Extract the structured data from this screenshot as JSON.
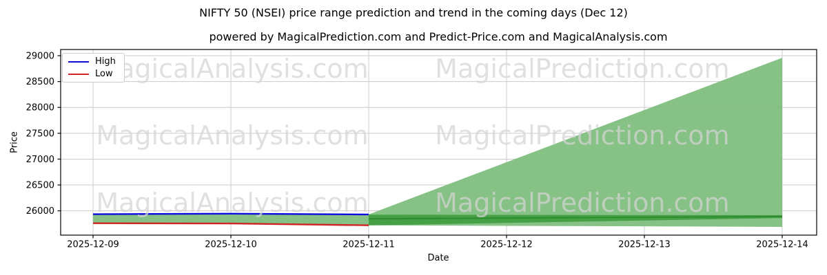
{
  "figure": {
    "title": "NIFTY 50 (NSEI) price range prediction and trend in the coming days (Dec 12)",
    "subtitle": "powered by MagicalPrediction.com and Predict-Price.com and MagicalAnalysis.com"
  },
  "chart_data": {
    "type": "line",
    "title": "NIFTY 50 (NSEI) price range prediction and trend in the coming days (Dec 12)",
    "subtitle": "powered by MagicalPrediction.com and Predict-Price.com and MagicalAnalysis.com",
    "xlabel": "Date",
    "ylabel": "Price",
    "x_categories": [
      "2025-12-09",
      "2025-12-10",
      "2025-12-11",
      "2025-12-12",
      "2025-12-13",
      "2025-12-14"
    ],
    "y_ticks": [
      26000,
      26500,
      27000,
      27500,
      28000,
      28500,
      29000
    ],
    "xlim": [
      -0.235,
      5.25
    ],
    "ylim": [
      25530,
      29120
    ],
    "grid": true,
    "grid_color": "#cccccc",
    "axis_color": "#000000",
    "watermark_color": "#d4d4d4",
    "legend": {
      "position": "upper-left",
      "entries": [
        {
          "label": "High",
          "color": "#0b0bdf"
        },
        {
          "label": "Low",
          "color": "#cf2424"
        }
      ]
    },
    "series": [
      {
        "name": "High",
        "color": "#0b0bdf",
        "width": 2.4,
        "x": [
          0,
          1,
          2
        ],
        "y": [
          25935,
          25945,
          25930
        ]
      },
      {
        "name": "Low",
        "color": "#cf2424",
        "width": 2.4,
        "x": [
          0,
          1,
          2
        ],
        "y": [
          25760,
          25755,
          25720
        ]
      },
      {
        "name": "Prediction mid",
        "color": "#2e8c2e",
        "width": 2,
        "x": [
          2,
          5
        ],
        "y": [
          25845,
          25890
        ]
      }
    ],
    "bands": [
      {
        "name": "historical high-low range",
        "color": "#80be80",
        "opacity": 0.95,
        "points": [
          [
            0,
            25935
          ],
          [
            1,
            25945
          ],
          [
            2,
            25930
          ],
          [
            2,
            25720
          ],
          [
            1,
            25755
          ],
          [
            0,
            25760
          ]
        ]
      },
      {
        "name": "prediction fan",
        "color": "#80be80",
        "opacity": 0.95,
        "points": [
          [
            2,
            25930
          ],
          [
            5,
            28960
          ],
          [
            5,
            25690
          ],
          [
            2,
            25720
          ]
        ]
      },
      {
        "name": "prediction fan overlap",
        "color": "#46a046",
        "opacity": 1,
        "points": [
          [
            2,
            25925
          ],
          [
            5,
            25915
          ],
          [
            5,
            25860
          ],
          [
            2,
            25720
          ]
        ]
      }
    ],
    "watermarks": [
      {
        "text": "MagicalAnalysis.com",
        "x": 0.227,
        "y": 0.104
      },
      {
        "text": "MagicalPrediction.com",
        "x": 0.69,
        "y": 0.104
      },
      {
        "text": "MagicalAnalysis.com",
        "x": 0.227,
        "y": 0.463
      },
      {
        "text": "MagicalPrediction.com",
        "x": 0.69,
        "y": 0.463
      },
      {
        "text": "MagicalAnalysis.com",
        "x": 0.227,
        "y": 0.826
      },
      {
        "text": "MagicalPrediction.com",
        "x": 0.69,
        "y": 0.826
      }
    ]
  }
}
